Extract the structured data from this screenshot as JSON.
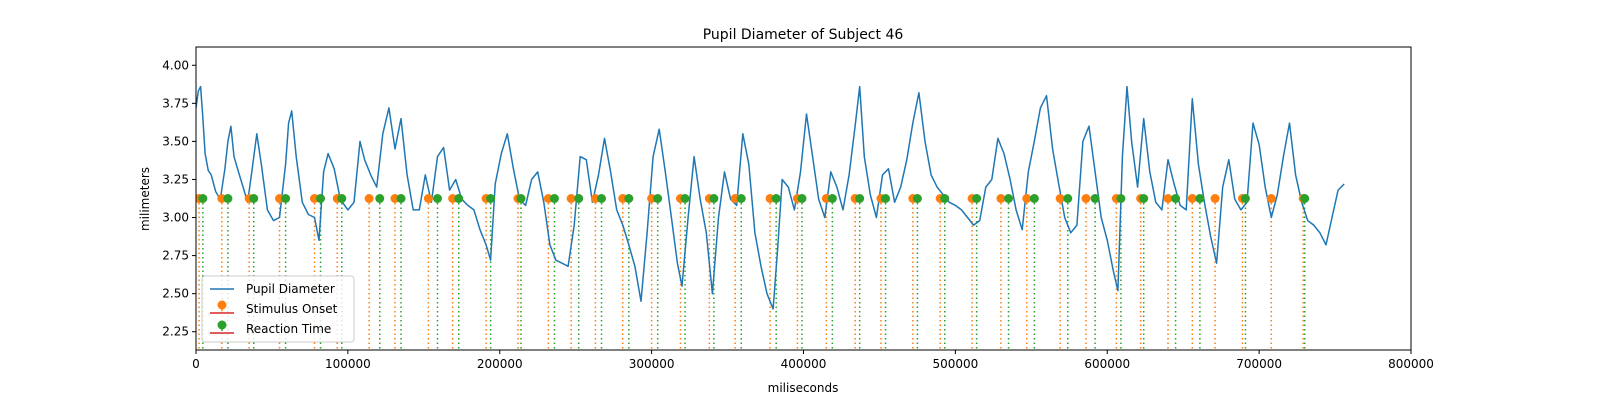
{
  "chart_data": {
    "type": "line",
    "title": "Pupil Diameter of Subject 46",
    "xlabel": "miliseconds",
    "ylabel": "milimeters",
    "xlim": [
      0,
      800000
    ],
    "ylim": [
      2.13,
      4.12
    ],
    "xticks": [
      0,
      100000,
      200000,
      300000,
      400000,
      500000,
      600000,
      700000,
      800000
    ],
    "xtick_labels": [
      "0",
      "100000",
      "200000",
      "300000",
      "400000",
      "500000",
      "600000",
      "700000",
      "800000"
    ],
    "yticks": [
      2.25,
      2.5,
      2.75,
      3.0,
      3.25,
      3.5,
      3.75,
      4.0
    ],
    "ytick_labels": [
      "2.25",
      "2.50",
      "2.75",
      "3.00",
      "3.25",
      "3.50",
      "3.75",
      "4.00"
    ],
    "grid": false,
    "legend_position": "lower-left",
    "colors": {
      "pupil": "#1f77b4",
      "stimulus": "#ff7f0e",
      "reaction": "#2ca02c",
      "stem_base": "#d62728"
    },
    "series": [
      {
        "name": "Pupil Diameter",
        "kind": "line",
        "points": [
          [
            0,
            3.72
          ],
          [
            1500,
            3.83
          ],
          [
            3000,
            3.86
          ],
          [
            4500,
            3.66
          ],
          [
            6000,
            3.42
          ],
          [
            8000,
            3.31
          ],
          [
            10000,
            3.28
          ],
          [
            13000,
            3.17
          ],
          [
            16000,
            3.12
          ],
          [
            19000,
            3.32
          ],
          [
            21000,
            3.5
          ],
          [
            23000,
            3.6
          ],
          [
            25000,
            3.4
          ],
          [
            28000,
            3.3
          ],
          [
            31000,
            3.2
          ],
          [
            34000,
            3.1
          ],
          [
            37000,
            3.32
          ],
          [
            40000,
            3.55
          ],
          [
            43000,
            3.35
          ],
          [
            47000,
            3.05
          ],
          [
            51000,
            2.98
          ],
          [
            55000,
            3.0
          ],
          [
            59000,
            3.35
          ],
          [
            61000,
            3.62
          ],
          [
            63000,
            3.7
          ],
          [
            66000,
            3.4
          ],
          [
            70000,
            3.1
          ],
          [
            74000,
            3.02
          ],
          [
            78000,
            3.0
          ],
          [
            81000,
            2.85
          ],
          [
            84000,
            3.3
          ],
          [
            87000,
            3.42
          ],
          [
            91000,
            3.32
          ],
          [
            95000,
            3.12
          ],
          [
            100000,
            3.05
          ],
          [
            104000,
            3.1
          ],
          [
            108000,
            3.5
          ],
          [
            111000,
            3.38
          ],
          [
            115000,
            3.28
          ],
          [
            119000,
            3.2
          ],
          [
            123000,
            3.55
          ],
          [
            127000,
            3.72
          ],
          [
            131000,
            3.45
          ],
          [
            135000,
            3.65
          ],
          [
            139000,
            3.28
          ],
          [
            143000,
            3.05
          ],
          [
            147000,
            3.05
          ],
          [
            151000,
            3.28
          ],
          [
            155000,
            3.1
          ],
          [
            159000,
            3.4
          ],
          [
            163000,
            3.46
          ],
          [
            167000,
            3.18
          ],
          [
            171000,
            3.25
          ],
          [
            175000,
            3.12
          ],
          [
            179000,
            3.08
          ],
          [
            183000,
            3.05
          ],
          [
            187000,
            2.92
          ],
          [
            191000,
            2.82
          ],
          [
            194000,
            2.72
          ],
          [
            197000,
            3.22
          ],
          [
            201000,
            3.42
          ],
          [
            205000,
            3.55
          ],
          [
            209000,
            3.32
          ],
          [
            213000,
            3.12
          ],
          [
            217000,
            3.08
          ],
          [
            221000,
            3.25
          ],
          [
            225000,
            3.3
          ],
          [
            229000,
            3.1
          ],
          [
            233000,
            2.82
          ],
          [
            237000,
            2.72
          ],
          [
            241000,
            2.7
          ],
          [
            245000,
            2.68
          ],
          [
            249000,
            2.95
          ],
          [
            253000,
            3.4
          ],
          [
            257000,
            3.38
          ],
          [
            261000,
            3.1
          ],
          [
            265000,
            3.28
          ],
          [
            269000,
            3.52
          ],
          [
            273000,
            3.3
          ],
          [
            277000,
            3.05
          ],
          [
            281000,
            2.95
          ],
          [
            285000,
            2.82
          ],
          [
            289000,
            2.68
          ],
          [
            293000,
            2.45
          ],
          [
            297000,
            2.9
          ],
          [
            301000,
            3.4
          ],
          [
            305000,
            3.58
          ],
          [
            309000,
            3.3
          ],
          [
            313000,
            3.0
          ],
          [
            317000,
            2.7
          ],
          [
            320000,
            2.55
          ],
          [
            324000,
            3.0
          ],
          [
            328000,
            3.4
          ],
          [
            332000,
            3.12
          ],
          [
            336000,
            2.9
          ],
          [
            340000,
            2.5
          ],
          [
            344000,
            3.0
          ],
          [
            348000,
            3.3
          ],
          [
            352000,
            3.12
          ],
          [
            356000,
            3.08
          ],
          [
            360000,
            3.55
          ],
          [
            364000,
            3.35
          ],
          [
            368000,
            2.9
          ],
          [
            372000,
            2.68
          ],
          [
            376000,
            2.5
          ],
          [
            380000,
            2.4
          ],
          [
            383000,
            2.8
          ],
          [
            386000,
            3.25
          ],
          [
            390000,
            3.2
          ],
          [
            394000,
            3.05
          ],
          [
            398000,
            3.3
          ],
          [
            402000,
            3.68
          ],
          [
            406000,
            3.4
          ],
          [
            410000,
            3.12
          ],
          [
            414000,
            3.0
          ],
          [
            418000,
            3.3
          ],
          [
            422000,
            3.2
          ],
          [
            426000,
            3.05
          ],
          [
            430000,
            3.28
          ],
          [
            434000,
            3.6
          ],
          [
            437000,
            3.86
          ],
          [
            440000,
            3.4
          ],
          [
            444000,
            3.15
          ],
          [
            448000,
            3.0
          ],
          [
            452000,
            3.28
          ],
          [
            456000,
            3.32
          ],
          [
            460000,
            3.1
          ],
          [
            464000,
            3.2
          ],
          [
            468000,
            3.38
          ],
          [
            472000,
            3.62
          ],
          [
            476000,
            3.82
          ],
          [
            480000,
            3.5
          ],
          [
            484000,
            3.28
          ],
          [
            488000,
            3.2
          ],
          [
            492000,
            3.15
          ],
          [
            496000,
            3.1
          ],
          [
            500000,
            3.08
          ],
          [
            504000,
            3.05
          ],
          [
            508000,
            3.0
          ],
          [
            512000,
            2.95
          ],
          [
            516000,
            2.98
          ],
          [
            520000,
            3.2
          ],
          [
            524000,
            3.25
          ],
          [
            528000,
            3.52
          ],
          [
            532000,
            3.42
          ],
          [
            536000,
            3.25
          ],
          [
            540000,
            3.05
          ],
          [
            544000,
            2.92
          ],
          [
            548000,
            3.3
          ],
          [
            552000,
            3.5
          ],
          [
            556000,
            3.72
          ],
          [
            560000,
            3.8
          ],
          [
            564000,
            3.45
          ],
          [
            568000,
            3.22
          ],
          [
            572000,
            3.0
          ],
          [
            576000,
            2.9
          ],
          [
            580000,
            2.95
          ],
          [
            584000,
            3.5
          ],
          [
            588000,
            3.6
          ],
          [
            592000,
            3.3
          ],
          [
            596000,
            3.0
          ],
          [
            600000,
            2.85
          ],
          [
            604000,
            2.65
          ],
          [
            607000,
            2.52
          ],
          [
            610000,
            3.4
          ],
          [
            613000,
            3.86
          ],
          [
            616000,
            3.5
          ],
          [
            620000,
            3.2
          ],
          [
            624000,
            3.65
          ],
          [
            628000,
            3.3
          ],
          [
            632000,
            3.1
          ],
          [
            636000,
            3.05
          ],
          [
            640000,
            3.38
          ],
          [
            644000,
            3.22
          ],
          [
            648000,
            3.08
          ],
          [
            652000,
            3.05
          ],
          [
            656000,
            3.78
          ],
          [
            660000,
            3.35
          ],
          [
            664000,
            3.1
          ],
          [
            668000,
            2.88
          ],
          [
            672000,
            2.7
          ],
          [
            676000,
            3.2
          ],
          [
            680000,
            3.38
          ],
          [
            684000,
            3.12
          ],
          [
            688000,
            3.05
          ],
          [
            692000,
            3.1
          ],
          [
            696000,
            3.62
          ],
          [
            700000,
            3.48
          ],
          [
            704000,
            3.2
          ],
          [
            708000,
            3.0
          ],
          [
            712000,
            3.15
          ],
          [
            716000,
            3.4
          ],
          [
            720000,
            3.62
          ],
          [
            724000,
            3.28
          ],
          [
            728000,
            3.1
          ],
          [
            732000,
            2.98
          ],
          [
            736000,
            2.95
          ],
          [
            740000,
            2.9
          ],
          [
            744000,
            2.82
          ],
          [
            748000,
            3.0
          ],
          [
            752000,
            3.18
          ],
          [
            756000,
            3.22
          ]
        ]
      },
      {
        "name": "Stimulus Onset",
        "kind": "stem",
        "y": 3.125,
        "x": [
          2000,
          17000,
          35000,
          55000,
          78000,
          93000,
          114000,
          131000,
          153000,
          169000,
          191000,
          212000,
          232000,
          247000,
          263000,
          281000,
          300000,
          319000,
          338000,
          355000,
          378000,
          396000,
          415000,
          434000,
          451000,
          472000,
          490000,
          511000,
          530000,
          547000,
          569000,
          586000,
          606000,
          622000,
          640000,
          656000,
          671000,
          689000,
          708000,
          729000
        ]
      },
      {
        "name": "Reaction Time",
        "kind": "stem",
        "y": 3.125,
        "x": [
          4500,
          21000,
          38000,
          59000,
          82000,
          96000,
          121000,
          135000,
          159000,
          173000,
          194000,
          214000,
          236000,
          252000,
          267000,
          285000,
          304000,
          322000,
          341000,
          359000,
          382000,
          399000,
          419000,
          437000,
          454000,
          475000,
          493000,
          514000,
          535000,
          552000,
          574000,
          592000,
          609000,
          624000,
          645000,
          661000,
          691000,
          730000
        ]
      }
    ]
  }
}
